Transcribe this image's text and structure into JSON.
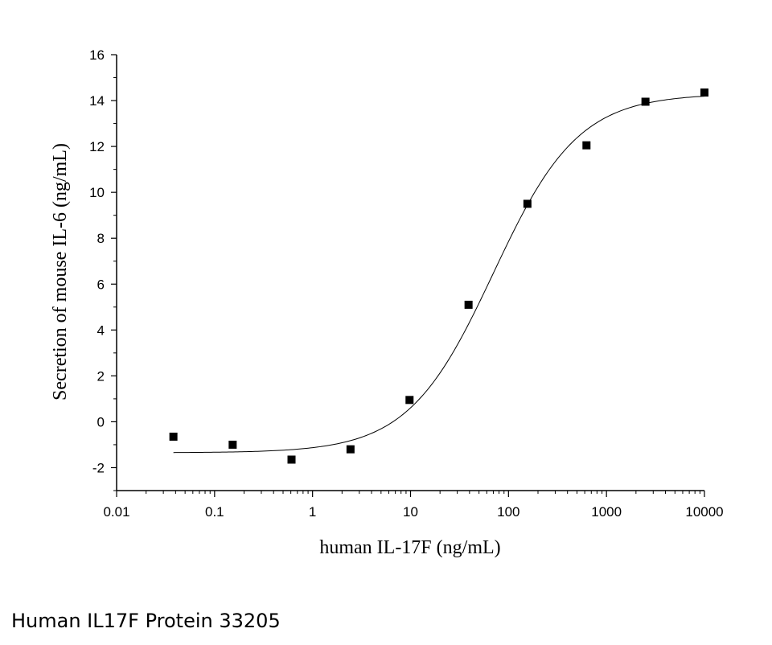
{
  "caption": "Human IL17F Protein 33205",
  "chart_data": {
    "type": "scatter",
    "xlabel": "human IL-17F (ng/mL)",
    "ylabel": "Secretion of mouse IL-6 (ng/mL)",
    "xscale": "log",
    "xlim": [
      0.01,
      10000
    ],
    "ylim": [
      -3,
      16
    ],
    "xticks": [
      0.01,
      0.1,
      1,
      10,
      100,
      1000,
      10000
    ],
    "xtick_labels": [
      "0.01",
      "0.1",
      "1",
      "10",
      "100",
      "1000",
      "10000"
    ],
    "yticks": [
      -2,
      0,
      2,
      4,
      6,
      8,
      10,
      12,
      14,
      16
    ],
    "ytick_labels": [
      "-2",
      "0",
      "2",
      "4",
      "6",
      "8",
      "10",
      "12",
      "14",
      "16"
    ],
    "grid": false,
    "series": [
      {
        "x": [
          0.038,
          0.153,
          0.61,
          2.44,
          9.77,
          39.1,
          156,
          625,
          2500,
          10000
        ],
        "y": [
          -0.65,
          -1.0,
          -1.65,
          -1.2,
          0.95,
          5.1,
          9.5,
          12.05,
          13.95,
          14.35
        ]
      }
    ],
    "fit_curve": {
      "model": "4PL",
      "bottom": -1.35,
      "top": 14.3,
      "ec50": 70,
      "hill": 1.0
    }
  }
}
